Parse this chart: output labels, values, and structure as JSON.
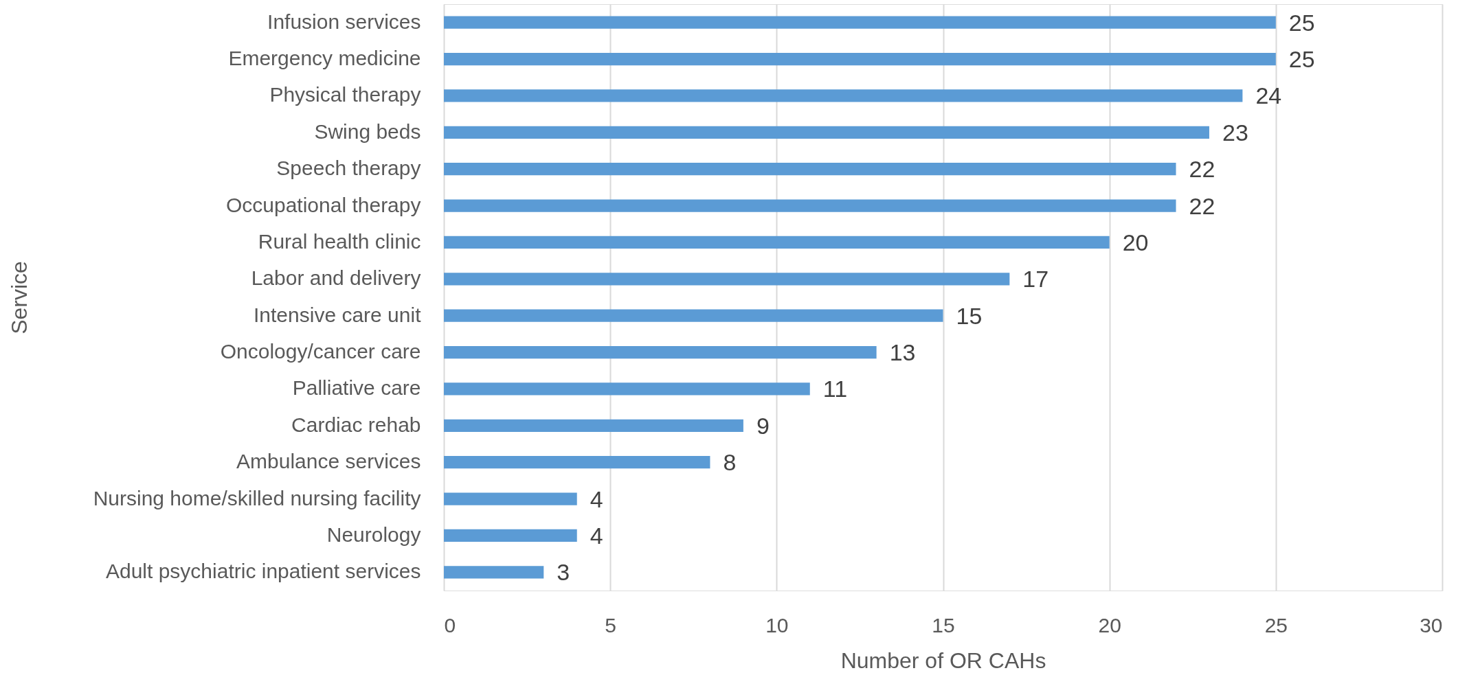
{
  "chart_data": {
    "type": "bar",
    "orientation": "horizontal",
    "categories": [
      "Infusion services",
      "Emergency medicine",
      "Physical therapy",
      "Swing beds",
      "Speech therapy",
      "Occupational therapy",
      "Rural health clinic",
      "Labor and delivery",
      "Intensive care unit",
      "Oncology/cancer care",
      "Palliative care",
      "Cardiac rehab",
      "Ambulance services",
      "Nursing home/skilled nursing facility",
      "Neurology",
      "Adult psychiatric inpatient services"
    ],
    "values": [
      25,
      25,
      24,
      23,
      22,
      22,
      20,
      17,
      15,
      13,
      11,
      9,
      8,
      4,
      4,
      3
    ],
    "color": "#5b9bd5",
    "xlabel": "Number of OR CAHs",
    "ylabel": "Service",
    "xlim": [
      0,
      30
    ],
    "xticks": [
      0,
      5,
      10,
      15,
      20,
      25,
      30
    ],
    "grid": "x",
    "data_labels": true
  }
}
